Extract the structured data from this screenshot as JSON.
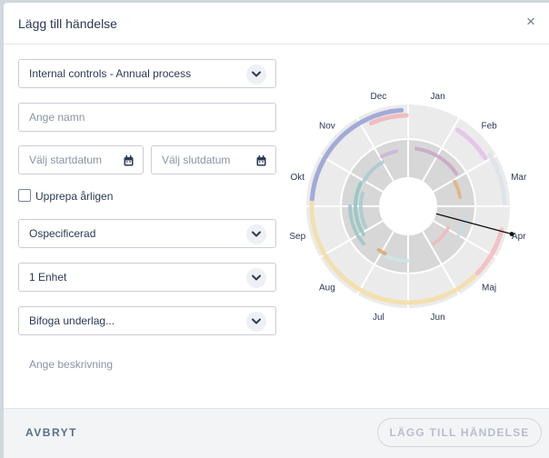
{
  "dialog": {
    "title": "Lägg till händelse",
    "close_symbol": "×"
  },
  "form": {
    "process_value": "Internal controls - Annual process",
    "name_placeholder": "Ange namn",
    "start_date_placeholder": "Välj startdatum",
    "end_date_placeholder": "Välj slutdatum",
    "repeat_label": "Upprepa årligen",
    "repeat_checked": false,
    "category_value": "Ospecificerad",
    "unit_value": "1 Enhet",
    "attachment_value": "Bifoga underlag...",
    "description_placeholder": "Ange beskrivning"
  },
  "wheel": {
    "months": [
      "Jan",
      "Feb",
      "Mar",
      "Apr",
      "Maj",
      "Jun",
      "Jul",
      "Aug",
      "Sep",
      "Okt",
      "Nov",
      "Dec"
    ],
    "pointer_month": "Apr"
  },
  "footer": {
    "cancel_label": "AVBRYT",
    "submit_label": "LÄGG TILL HÄNDELSE"
  },
  "colors": {
    "accent": "#2b3a55",
    "border": "#c9ced6",
    "placeholder": "#8a94a3",
    "disabled": "#b7bec8"
  },
  "icons": [
    "close-icon",
    "chevron-down-icon",
    "calendar-icon"
  ]
}
